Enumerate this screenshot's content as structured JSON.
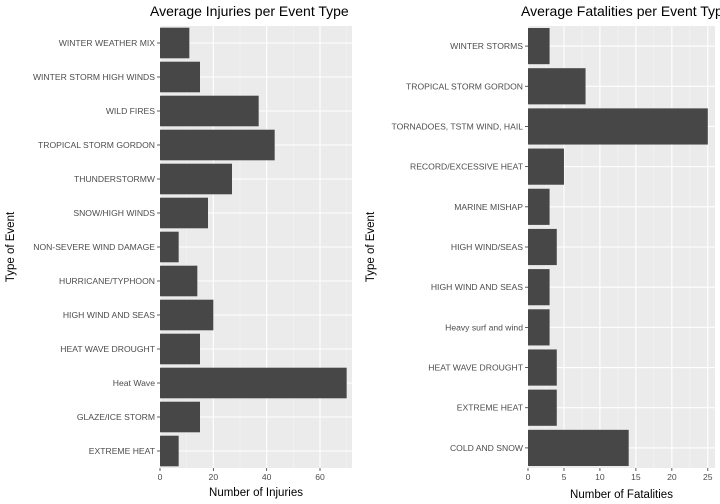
{
  "chart_data": [
    {
      "type": "bar",
      "orientation": "horizontal",
      "title": "Average Injuries per Event Type",
      "xlabel": "Number of Injuries",
      "ylabel": "Type of Event",
      "xlim": [
        0,
        72
      ],
      "xticks": [
        0,
        20,
        40,
        60
      ],
      "grid": true,
      "bar_color": "#474747",
      "panel_color": "#ebebeb",
      "categories": [
        "WINTER WEATHER MIX",
        "WINTER STORM HIGH WINDS",
        "WILD FIRES",
        "TROPICAL STORM GORDON",
        "THUNDERSTORMW",
        "SNOW/HIGH WINDS",
        "NON-SEVERE WIND DAMAGE",
        "HURRICANE/TYPHOON",
        "HIGH WIND AND SEAS",
        "HEAT WAVE DROUGHT",
        "Heat Wave",
        "GLAZE/ICE STORM",
        "EXTREME HEAT"
      ],
      "values": [
        11,
        15,
        37,
        43,
        27,
        18,
        7,
        14,
        20,
        15,
        70,
        15,
        7
      ]
    },
    {
      "type": "bar",
      "orientation": "horizontal",
      "title": "Average Fatalities per Event Type",
      "xlabel": "Number of Fatalities",
      "ylabel": "Type of Event",
      "xlim": [
        0,
        26
      ],
      "xticks": [
        0,
        5,
        10,
        15,
        20,
        25
      ],
      "grid": true,
      "bar_color": "#474747",
      "panel_color": "#ebebeb",
      "categories": [
        "WINTER STORMS",
        "TROPICAL STORM GORDON",
        "TORNADOES, TSTM WIND, HAIL",
        "RECORD/EXCESSIVE HEAT",
        "MARINE MISHAP",
        "HIGH WIND/SEAS",
        "HIGH WIND AND SEAS",
        "Heavy surf and wind",
        "HEAT WAVE DROUGHT",
        "EXTREME HEAT",
        "COLD AND SNOW"
      ],
      "values": [
        3,
        8,
        25,
        5,
        3,
        4,
        3,
        3,
        4,
        4,
        14
      ]
    }
  ]
}
